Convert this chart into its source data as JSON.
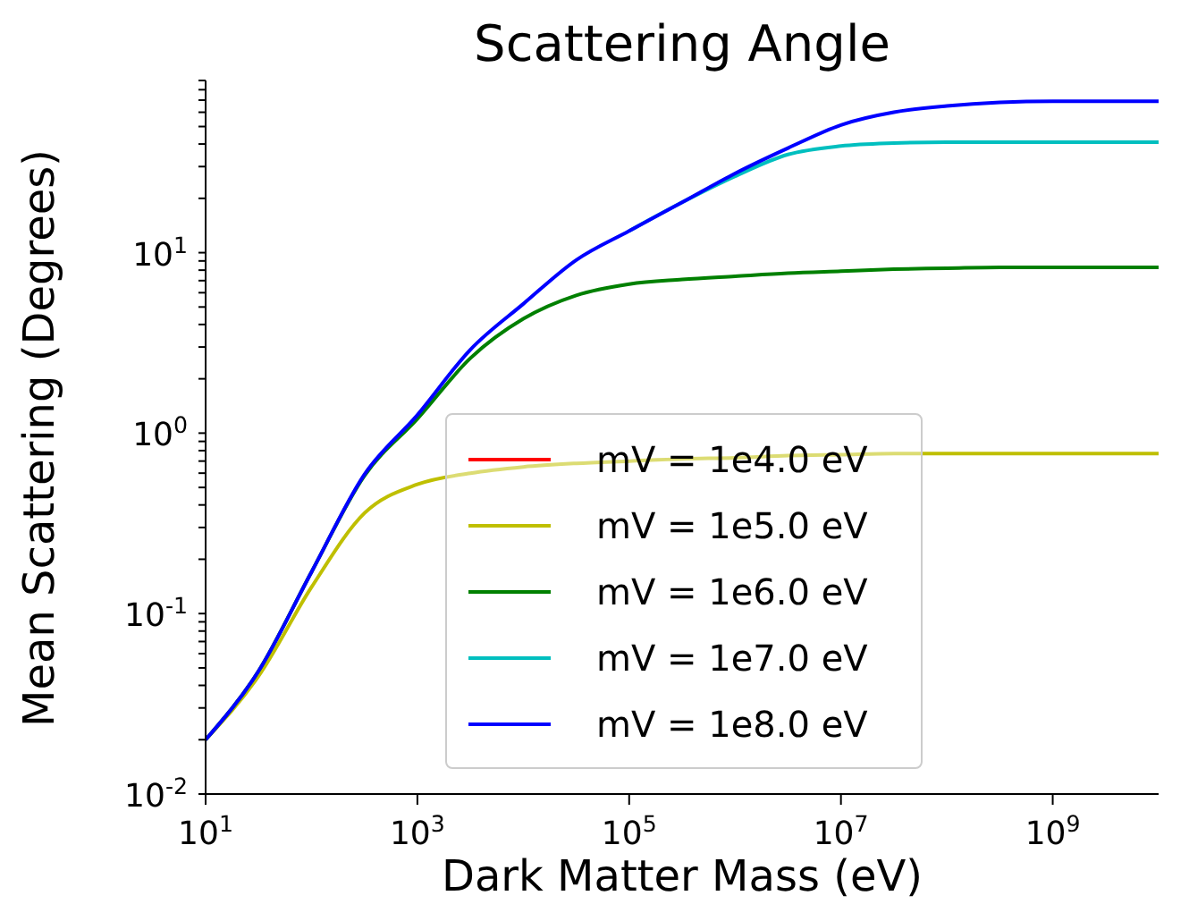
{
  "chart_data": {
    "type": "line",
    "title": "Scattering Angle",
    "xlabel": "Dark Matter Mass (eV)",
    "ylabel": "Mean Scattering (Degrees)",
    "log": "xy",
    "legend": "lower center",
    "grid": false,
    "x": [
      10,
      31.6,
      100,
      316,
      1000,
      3162,
      10000,
      31623,
      100000,
      316228,
      1000000,
      3162278,
      10000000,
      31622777,
      100000000,
      316227766,
      1000000000,
      10000000000
    ],
    "xlim": [
      10,
      10000000000
    ],
    "xticks": [
      {
        "value": 10,
        "label": "10$^{1}$"
      },
      {
        "value": 1000,
        "label": "10$^{3}$"
      },
      {
        "value": 100000,
        "label": "10$^{5}$"
      },
      {
        "value": 10000000,
        "label": "10$^{7}$"
      },
      {
        "value": 1000000000,
        "label": "10$^{9}$"
      }
    ],
    "ylim": [
      0.01,
      90
    ],
    "yticks": [
      {
        "value": 0.01,
        "label": "10$^{-2}$"
      },
      {
        "value": 0.02,
        "label": null
      },
      {
        "value": 0.03,
        "label": null
      },
      {
        "value": 0.04,
        "label": null
      },
      {
        "value": 0.05,
        "label": null
      },
      {
        "value": 0.06,
        "label": null
      },
      {
        "value": 0.07,
        "label": null
      },
      {
        "value": 0.08,
        "label": null
      },
      {
        "value": 0.09,
        "label": null
      },
      {
        "value": 0.1,
        "label": "10$^{-1}$"
      },
      {
        "value": 0.2,
        "label": null
      },
      {
        "value": 0.3,
        "label": null
      },
      {
        "value": 0.4,
        "label": null
      },
      {
        "value": 0.5,
        "label": null
      },
      {
        "value": 0.6,
        "label": null
      },
      {
        "value": 0.7,
        "label": null
      },
      {
        "value": 0.8,
        "label": null
      },
      {
        "value": 0.9,
        "label": null
      },
      {
        "value": 1,
        "label": "10$^{0}$"
      },
      {
        "value": 2,
        "label": null
      },
      {
        "value": 3,
        "label": null
      },
      {
        "value": 4,
        "label": null
      },
      {
        "value": 5,
        "label": null
      },
      {
        "value": 6,
        "label": null
      },
      {
        "value": 7,
        "label": null
      },
      {
        "value": 8,
        "label": null
      },
      {
        "value": 9,
        "label": null
      },
      {
        "value": 10,
        "label": "10$^{1}$"
      },
      {
        "value": 20,
        "label": null
      },
      {
        "value": 30,
        "label": null
      },
      {
        "value": 40,
        "label": null
      },
      {
        "value": 50,
        "label": null
      },
      {
        "value": 60,
        "label": null
      },
      {
        "value": 70,
        "label": null
      },
      {
        "value": 80,
        "label": null
      },
      {
        "value": 90,
        "label": null
      }
    ],
    "series": [
      {
        "name": "mV = 1e4.0 eV",
        "color": "#ff0000",
        "values": [
          null,
          null,
          null,
          null,
          null,
          null,
          null,
          null,
          null,
          null,
          null,
          null,
          null,
          null,
          null,
          null,
          null,
          null
        ]
      },
      {
        "name": "mV = 1e5.0 eV",
        "color": "#bfbf00",
        "values": [
          0.02,
          0.045,
          0.14,
          0.36,
          0.52,
          0.6,
          0.65,
          0.68,
          0.7,
          0.72,
          0.73,
          0.75,
          0.76,
          0.77,
          0.77,
          0.77,
          0.77,
          0.77
        ]
      },
      {
        "name": "mV = 1e6.0 eV",
        "color": "#008000",
        "values": [
          0.02,
          0.048,
          0.17,
          0.58,
          1.2,
          2.6,
          4.3,
          5.8,
          6.7,
          7.1,
          7.4,
          7.7,
          7.9,
          8.1,
          8.2,
          8.3,
          8.3,
          8.3
        ]
      },
      {
        "name": "mV = 1e7.0 eV",
        "color": "#00bfbf",
        "values": [
          null,
          null,
          null,
          null,
          null,
          null,
          null,
          null,
          13.2,
          19,
          26.5,
          35,
          39,
          40.5,
          41,
          41,
          41,
          41
        ]
      },
      {
        "name": "mV = 1e8.0 eV",
        "color": "#0000ff",
        "values": [
          0.02,
          0.048,
          0.17,
          0.59,
          1.26,
          2.9,
          5.2,
          9.1,
          13.2,
          19,
          27.5,
          38,
          51,
          60,
          65,
          68,
          69,
          69
        ]
      }
    ]
  }
}
